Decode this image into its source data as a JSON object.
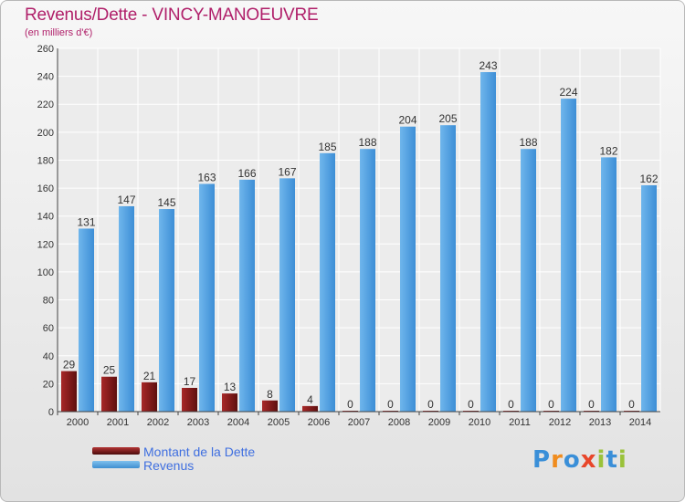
{
  "title": "Revenus/Dette - VINCY-MANOEUVRE",
  "subtitle": "(en milliers d'€)",
  "logo_text": "Proxiti",
  "chart_data": {
    "type": "bar",
    "title": "Revenus/Dette - VINCY-MANOEUVRE",
    "ylabel": "(en milliers d'€)",
    "xlabel": "",
    "ylim": [
      0,
      260
    ],
    "yticks": [
      0,
      20,
      40,
      60,
      80,
      100,
      120,
      140,
      160,
      180,
      200,
      220,
      240,
      260
    ],
    "grid": true,
    "categories": [
      "2000",
      "2001",
      "2002",
      "2003",
      "2004",
      "2005",
      "2006",
      "2007",
      "2008",
      "2009",
      "2010",
      "2011",
      "2012",
      "2013",
      "2014"
    ],
    "series": [
      {
        "name": "Montant de la Dette",
        "color": "#8b1a1a",
        "values": [
          29,
          25,
          21,
          17,
          13,
          8,
          4,
          0,
          0,
          0,
          0,
          0,
          0,
          0,
          0
        ]
      },
      {
        "name": "Revenus",
        "color": "#4a9ee0",
        "values": [
          131,
          147,
          145,
          163,
          166,
          167,
          185,
          188,
          204,
          205,
          243,
          188,
          224,
          182,
          162
        ]
      }
    ],
    "legend": "bottom-left"
  }
}
